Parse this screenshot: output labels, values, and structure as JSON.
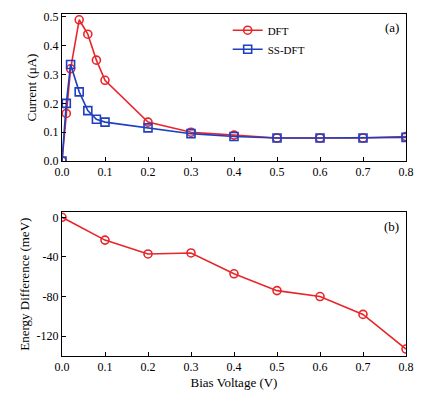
{
  "chart_data": [
    {
      "type": "line",
      "annotation": "(a)",
      "x_label": "",
      "y_label": "Current (μA)",
      "x": [
        0,
        0.01,
        0.02,
        0.04,
        0.06,
        0.08,
        0.1,
        0.2,
        0.3,
        0.4,
        0.5,
        0.6,
        0.7,
        0.8
      ],
      "series": [
        {
          "name": "DFT",
          "color": "#e8262a",
          "marker": "circle",
          "line_style": "solid",
          "values": [
            0,
            0.165,
            0.32,
            0.49,
            0.44,
            0.35,
            0.28,
            0.135,
            0.1,
            0.09,
            0.08,
            0.08,
            0.08,
            0.085
          ]
        },
        {
          "name": "SS-DFT",
          "color": "#1f3fbf",
          "marker": "square",
          "line_style": "solid",
          "values": [
            0,
            0.2,
            0.335,
            0.24,
            0.175,
            0.145,
            0.135,
            0.115,
            0.095,
            0.085,
            0.08,
            0.08,
            0.08,
            0.082
          ]
        }
      ],
      "xlim": [
        0,
        0.8
      ],
      "xticks": [
        {
          "value": 0,
          "label": "0.0"
        },
        0.1,
        0.2,
        0.3,
        0.4,
        0.5,
        0.6,
        0.7,
        0.8
      ],
      "ylim": [
        0,
        0.51
      ],
      "yticks": [
        {
          "value": 0,
          "label": "0.0"
        },
        0.1,
        0.2,
        0.3,
        0.4,
        0.5
      ],
      "legend": "upper right",
      "grid": false
    },
    {
      "type": "line",
      "annotation": "(b)",
      "x_label": "Bias Voltage (V)",
      "y_label": "Energy Difference (meV)",
      "x": [
        0,
        0.1,
        0.2,
        0.3,
        0.4,
        0.5,
        0.6,
        0.7,
        0.8
      ],
      "series": [
        {
          "name": "Energy Difference",
          "color": "#e8262a",
          "marker": "circle",
          "line_style": "solid",
          "values": [
            0,
            -23,
            -37,
            -36,
            -57,
            -74,
            -80,
            -98,
            -133
          ]
        }
      ],
      "xlim": [
        0,
        0.8
      ],
      "xticks": [
        {
          "value": 0,
          "label": "0.0"
        },
        0.1,
        0.2,
        0.3,
        0.4,
        0.5,
        0.6,
        0.7,
        0.8
      ],
      "ylim": [
        -140,
        5
      ],
      "yticks": [
        0,
        -40,
        -80,
        -120
      ],
      "grid": false
    }
  ]
}
